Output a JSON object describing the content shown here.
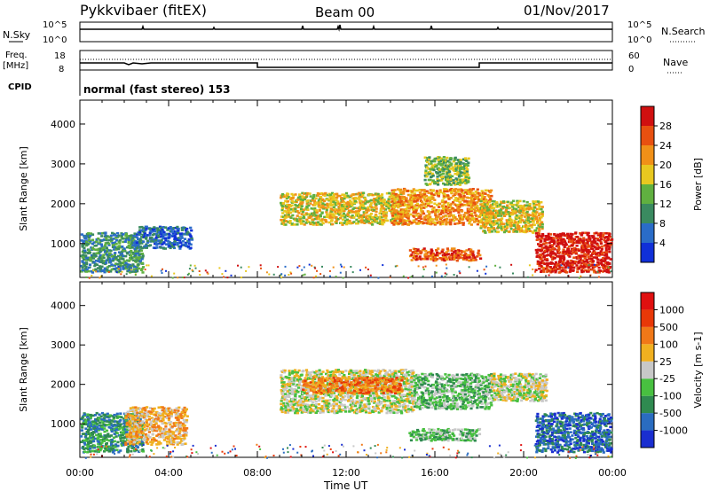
{
  "header": {
    "station": "Pykkvibaer (fitEX)",
    "beam": "Beam 00",
    "date": "01/Nov/2017"
  },
  "status_panel_1": {
    "left_label": "N.Sky",
    "right_label": "N.Search",
    "left_ticks": [
      "10^5",
      "10^0"
    ],
    "right_ticks": [
      "10^5",
      "10^0"
    ]
  },
  "status_panel_2": {
    "left_label_line1": "Freq.",
    "left_label_line2": "[MHz]",
    "right_label": "Nave",
    "left_ticks": [
      "18",
      "8"
    ],
    "right_ticks": [
      "60",
      "0"
    ]
  },
  "cpid": {
    "label": "CPID",
    "text": "normal (fast stereo) 153"
  },
  "chart_data": [
    {
      "type": "heatmap",
      "title": "",
      "xlabel": "Time UT",
      "ylabel": "Slant Range [km]",
      "xticks": [
        "00:00",
        "04:00",
        "08:00",
        "12:00",
        "16:00",
        "20:00",
        "00:00"
      ],
      "yticks": [
        "1000",
        "2000",
        "3000",
        "4000"
      ],
      "colorbar": {
        "label": "Power [dB]",
        "ticks": [
          "4",
          "8",
          "12",
          "16",
          "20",
          "24",
          "28"
        ],
        "colors": [
          "#1030d8",
          "#2a6cc8",
          "#3a8a60",
          "#60b040",
          "#e8c820",
          "#f09018",
          "#e85010",
          "#d01010"
        ]
      },
      "echo_regions": [
        {
          "t_start_h": 0.0,
          "t_end_h": 2.8,
          "range_start_km": 300,
          "range_end_km": 1300,
          "level": 2
        },
        {
          "t_start_h": 2.5,
          "t_end_h": 5.0,
          "range_start_km": 900,
          "range_end_km": 1450,
          "level": 1
        },
        {
          "t_start_h": 9.0,
          "t_end_h": 14.5,
          "range_start_km": 1500,
          "range_end_km": 2300,
          "level": 4
        },
        {
          "t_start_h": 14.0,
          "t_end_h": 18.5,
          "range_start_km": 1500,
          "range_end_km": 2400,
          "level": 5
        },
        {
          "t_start_h": 15.5,
          "t_end_h": 17.5,
          "range_start_km": 2500,
          "range_end_km": 3200,
          "level": 3
        },
        {
          "t_start_h": 18.0,
          "t_end_h": 20.8,
          "range_start_km": 1300,
          "range_end_km": 2100,
          "level": 4
        },
        {
          "t_start_h": 14.8,
          "t_end_h": 18.0,
          "range_start_km": 600,
          "range_end_km": 900,
          "level": 6
        },
        {
          "t_start_h": 20.5,
          "t_end_h": 24.0,
          "range_start_km": 300,
          "range_end_km": 1300,
          "level": 7
        }
      ]
    },
    {
      "type": "heatmap",
      "title": "",
      "xlabel": "Time UT",
      "ylabel": "Slant Range [km]",
      "xticks": [
        "00:00",
        "04:00",
        "08:00",
        "12:00",
        "16:00",
        "20:00",
        "00:00"
      ],
      "yticks": [
        "1000",
        "2000",
        "3000",
        "4000"
      ],
      "colorbar": {
        "label": "Velocity [m s-1]",
        "ticks": [
          "1000",
          "500",
          "100",
          "25",
          "-25",
          "-100",
          "-500",
          "-1000"
        ],
        "colors": [
          "#1a2ed0",
          "#2a6cc0",
          "#2f8a50",
          "#48c040",
          "#c8c8c8",
          "#f0b020",
          "#f07818",
          "#e83808",
          "#e01010"
        ]
      },
      "echo_regions": [
        {
          "t_start_h": 0.0,
          "t_end_h": 2.8,
          "range_start_km": 300,
          "range_end_km": 1300,
          "level": 2
        },
        {
          "t_start_h": 2.0,
          "t_end_h": 4.8,
          "range_start_km": 500,
          "range_end_km": 1450,
          "level": 5
        },
        {
          "t_start_h": 9.0,
          "t_end_h": 15.0,
          "range_start_km": 1300,
          "range_end_km": 2400,
          "level": 4
        },
        {
          "t_start_h": 10.0,
          "t_end_h": 14.5,
          "range_start_km": 1800,
          "range_end_km": 2200,
          "level": 6
        },
        {
          "t_start_h": 15.0,
          "t_end_h": 18.5,
          "range_start_km": 1400,
          "range_end_km": 2300,
          "level": 3
        },
        {
          "t_start_h": 14.8,
          "t_end_h": 18.0,
          "range_start_km": 600,
          "range_end_km": 900,
          "level": 3
        },
        {
          "t_start_h": 18.5,
          "t_end_h": 21.0,
          "range_start_km": 1600,
          "range_end_km": 2300,
          "level": 4
        },
        {
          "t_start_h": 20.5,
          "t_end_h": 24.0,
          "range_start_km": 300,
          "range_end_km": 1300,
          "level": 1
        }
      ]
    }
  ]
}
